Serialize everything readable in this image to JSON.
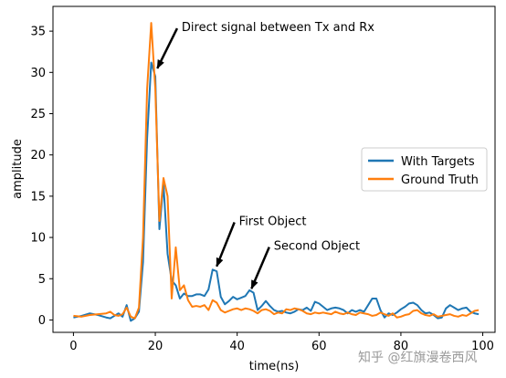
{
  "chart_data": {
    "type": "line",
    "title": "",
    "xlabel": "time(ns)",
    "ylabel": "amplitude",
    "xlim": [
      -5,
      103
    ],
    "ylim": [
      -1.5,
      38
    ],
    "xticks": [
      0,
      20,
      40,
      60,
      80,
      100
    ],
    "yticks": [
      0,
      5,
      10,
      15,
      20,
      25,
      30,
      35
    ],
    "grid": false,
    "legend_placement": "center-right",
    "series": [
      {
        "name": "With Targets",
        "color": "#1f77b4",
        "x": [
          0,
          2,
          4,
          6,
          8,
          9,
          10,
          11,
          12,
          13,
          14,
          15,
          16,
          17,
          18,
          19,
          20,
          21,
          22,
          23,
          24,
          25,
          26,
          27,
          28,
          29,
          30,
          31,
          32,
          33,
          34,
          35,
          36,
          37,
          38,
          39,
          40,
          41,
          42,
          43,
          44,
          45,
          46,
          47,
          48,
          49,
          50,
          51,
          52,
          53,
          54,
          55,
          56,
          57,
          58,
          59,
          60,
          61,
          62,
          63,
          64,
          65,
          66,
          67,
          68,
          69,
          70,
          71,
          72,
          73,
          74,
          75,
          76,
          77,
          78,
          79,
          80,
          81,
          82,
          83,
          84,
          85,
          86,
          87,
          88,
          89,
          90,
          91,
          92,
          93,
          94,
          95,
          96,
          97,
          98,
          99
        ],
        "y": [
          0.3,
          0.5,
          0.8,
          0.6,
          0.3,
          0.2,
          0.5,
          0.8,
          0.4,
          1.8,
          -0.1,
          0.2,
          1.0,
          7.0,
          22.0,
          31.2,
          29.5,
          11.0,
          16.5,
          8.0,
          4.8,
          4.2,
          2.6,
          3.2,
          2.9,
          2.9,
          3.1,
          3.1,
          2.9,
          3.7,
          6.1,
          5.9,
          2.8,
          1.9,
          2.3,
          2.8,
          2.5,
          2.7,
          2.9,
          3.6,
          3.3,
          1.2,
          1.7,
          2.3,
          1.7,
          1.2,
          1.0,
          1.1,
          0.9,
          0.8,
          1.0,
          1.3,
          1.2,
          1.5,
          1.1,
          2.2,
          2.0,
          1.6,
          1.2,
          1.4,
          1.5,
          1.4,
          1.2,
          0.8,
          1.2,
          1.0,
          1.2,
          1.0,
          1.8,
          2.6,
          2.6,
          1.2,
          0.3,
          0.8,
          0.6,
          0.9,
          1.3,
          1.6,
          2.0,
          2.1,
          1.8,
          1.2,
          0.8,
          0.9,
          0.6,
          0.2,
          0.3,
          1.4,
          1.8,
          1.5,
          1.2,
          1.4,
          1.5,
          1.0,
          0.8,
          0.7
        ],
        "_note": ""
      },
      {
        "name": "Ground Truth",
        "color": "#ff7f0e",
        "x": [
          0,
          2,
          4,
          6,
          8,
          9,
          10,
          11,
          12,
          13,
          14,
          15,
          16,
          17,
          18,
          19,
          20,
          21,
          22,
          23,
          24,
          25,
          26,
          27,
          28,
          29,
          30,
          31,
          32,
          33,
          34,
          35,
          36,
          37,
          38,
          39,
          40,
          41,
          42,
          43,
          44,
          45,
          46,
          47,
          48,
          49,
          50,
          51,
          52,
          53,
          54,
          55,
          56,
          57,
          58,
          59,
          60,
          61,
          62,
          63,
          64,
          65,
          66,
          67,
          68,
          69,
          70,
          71,
          72,
          73,
          74,
          75,
          76,
          77,
          78,
          79,
          80,
          81,
          82,
          83,
          84,
          85,
          86,
          87,
          88,
          89,
          90,
          91,
          92,
          93,
          94,
          95,
          96,
          97,
          98,
          99
        ],
        "y": [
          0.5,
          0.4,
          0.6,
          0.7,
          0.8,
          1.0,
          0.6,
          0.5,
          0.7,
          1.5,
          0.4,
          0.2,
          1.5,
          10.0,
          28.0,
          36.0,
          28.0,
          12.0,
          17.2,
          15.0,
          2.6,
          8.8,
          3.6,
          4.2,
          2.4,
          1.6,
          1.7,
          1.6,
          1.8,
          1.2,
          2.4,
          2.1,
          1.2,
          0.9,
          1.1,
          1.3,
          1.4,
          1.2,
          1.4,
          1.3,
          1.1,
          0.8,
          1.2,
          1.3,
          1.1,
          0.7,
          0.9,
          0.8,
          1.3,
          1.2,
          1.4,
          1.3,
          1.1,
          0.8,
          0.7,
          0.9,
          0.8,
          0.9,
          0.8,
          0.7,
          1.0,
          0.8,
          0.7,
          0.9,
          0.7,
          0.6,
          0.9,
          0.8,
          0.7,
          0.5,
          0.6,
          0.9,
          0.7,
          0.5,
          0.8,
          0.3,
          0.4,
          0.6,
          0.7,
          1.1,
          1.2,
          0.8,
          0.6,
          0.5,
          0.7,
          0.4,
          0.5,
          0.6,
          0.7,
          0.5,
          0.4,
          0.6,
          0.5,
          0.8,
          1.1,
          1.2
        ]
      }
    ],
    "annotations": [
      {
        "text": "Direct signal between Tx and Rx",
        "point": [
          20.5,
          30.5
        ],
        "text_at": [
          26,
          35
        ]
      },
      {
        "text": "First Object",
        "point": [
          35,
          6.5
        ],
        "text_at": [
          40,
          11.5
        ]
      },
      {
        "text": "Second Object",
        "point": [
          43.5,
          3.8
        ],
        "text_at": [
          48.5,
          8.5
        ]
      }
    ]
  },
  "watermark": "知乎 @红旗漫卷西风"
}
